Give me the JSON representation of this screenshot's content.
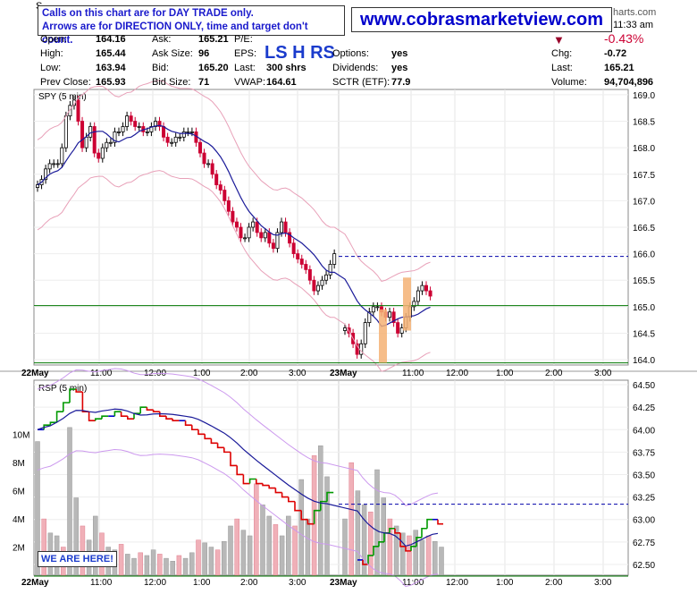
{
  "header": {
    "ticker_fragment": "S",
    "time": "11:33 am",
    "charts_suffix": "harts.com",
    "change_pct": "-0.43%",
    "stats_left": [
      {
        "label": "Open:",
        "value": "164.16"
      },
      {
        "label": "High:",
        "value": "165.44"
      },
      {
        "label": "Low:",
        "value": "163.94"
      },
      {
        "label": "Prev Close:",
        "value": "165.93"
      }
    ],
    "stats_mid": [
      {
        "label": "Ask:",
        "value": "165.21"
      },
      {
        "label": "Ask Size:",
        "value": "96"
      },
      {
        "label": "Bid:",
        "value": "165.20"
      },
      {
        "label": "Bid Size:",
        "value": "71"
      }
    ],
    "stats_mid2": [
      {
        "label": "P/E:",
        "value": ""
      },
      {
        "label": "EPS:",
        "value": ""
      },
      {
        "label": "Last:",
        "value": "300 shrs"
      },
      {
        "label": "VWAP:",
        "value": "164.61"
      }
    ],
    "stats_mid3": [
      {
        "label": "Options:",
        "value": "yes"
      },
      {
        "label": "Dividends:",
        "value": "yes"
      },
      {
        "label": "SCTR (ETF):",
        "value": "77.9"
      }
    ],
    "stats_right": [
      {
        "label": "Chg:",
        "value": "-0.72"
      },
      {
        "label": "Last:",
        "value": "165.21"
      },
      {
        "label": "Volume:",
        "value": "94,704,896"
      }
    ],
    "disclaimer_line1": "Calls on this chart are for DAY TRADE only.",
    "disclaimer_line2": "Arrows are for DIRECTION ONLY, time and target don't count.",
    "site": "www.cobrasmarketview.com",
    "ls_hrs": "LS H RS",
    "we_are_here": "WE ARE HERE!"
  },
  "colors": {
    "up": "#000000",
    "down": "#cc0033",
    "ma": "#1a1a99",
    "band": "#e8a0b8",
    "support": "#007700",
    "resistance": "#0000aa",
    "highlight": "#f5b274",
    "rsp_up": "#009900",
    "rsp_down": "#dd0000",
    "rsp_flat": "#0000cc",
    "vol_up": "#b8b8b8",
    "vol_down": "#f0b0b8"
  },
  "chart_data": [
    {
      "type": "candlestick",
      "title": "SPY (5 min)",
      "ylim": [
        163.9,
        169.1
      ],
      "yticks": [
        "169.0",
        "168.5",
        "168.0",
        "167.5",
        "167.0",
        "166.5",
        "166.0",
        "165.5",
        "165.0",
        "164.5",
        "164.0"
      ],
      "x_ticks": [
        "22May",
        "11:00",
        "12:00",
        "1:00",
        "2:00",
        "3:00",
        "23May",
        "11:00",
        "12:00",
        "1:00",
        "2:00",
        "3:00"
      ],
      "horizontal_lines": [
        {
          "kind": "resistance",
          "y": 165.95,
          "style": "dashed"
        },
        {
          "kind": "support",
          "y": 165.02,
          "style": "solid"
        },
        {
          "kind": "support",
          "y": 163.94,
          "style": "solid"
        }
      ],
      "close_series_day1": [
        167.3,
        167.4,
        167.6,
        167.7,
        167.7,
        167.7,
        168.0,
        168.6,
        168.8,
        168.9,
        168.5,
        168.0,
        168.2,
        168.4,
        167.9,
        167.8,
        168.0,
        168.1,
        168.1,
        168.3,
        168.3,
        168.4,
        168.6,
        168.5,
        168.4,
        168.4,
        168.3,
        168.3,
        168.4,
        168.5,
        168.4,
        168.2,
        168.1,
        168.1,
        168.2,
        168.2,
        168.3,
        168.3,
        168.3,
        168.1,
        167.9,
        167.7,
        167.7,
        167.5,
        167.3,
        167.2,
        167.0,
        166.8,
        166.6,
        166.5,
        166.3,
        166.3,
        166.5,
        166.6,
        166.4,
        166.3,
        166.4,
        166.2,
        166.1,
        166.4,
        166.6,
        166.4,
        166.2,
        166.0,
        165.9,
        165.8,
        165.7,
        165.5,
        165.3,
        165.4,
        165.5,
        165.6,
        165.8,
        166.0
      ],
      "close_series_day2": [
        164.6,
        164.5,
        164.3,
        164.1,
        164.3,
        164.7,
        164.9,
        165.0,
        165.0,
        164.9,
        164.8,
        164.9,
        164.7,
        164.5,
        164.6,
        164.8,
        165.0,
        165.1,
        165.3,
        165.4,
        165.3,
        165.2
      ]
    },
    {
      "type": "line",
      "title": "RSP (5 min)",
      "ylim": [
        62.38,
        64.55
      ],
      "yticks": [
        "64.50",
        "64.25",
        "64.00",
        "63.75",
        "63.50",
        "63.25",
        "63.00",
        "62.75",
        "62.50"
      ],
      "volume_ticks": [
        "10M",
        "8M",
        "6M",
        "4M",
        "2M"
      ],
      "x_ticks": [
        "22May",
        "11:00",
        "12:00",
        "1:00",
        "2:00",
        "3:00",
        "23May",
        "11:00",
        "12:00",
        "1:00",
        "2:00",
        "3:00"
      ],
      "horizontal_lines": [
        {
          "kind": "resistance",
          "y": 63.17,
          "style": "dashed"
        },
        {
          "kind": "support",
          "y": 62.37,
          "style": "solid"
        }
      ],
      "close_series_day1": [
        64.0,
        64.05,
        64.08,
        64.2,
        64.3,
        64.45,
        64.42,
        64.2,
        64.1,
        64.12,
        64.15,
        64.15,
        64.2,
        64.15,
        64.12,
        64.18,
        64.25,
        64.22,
        64.2,
        64.15,
        64.12,
        64.1,
        64.1,
        64.05,
        64.0,
        63.95,
        63.9,
        63.85,
        63.8,
        63.75,
        63.6,
        63.5,
        63.4,
        63.45,
        63.4,
        63.38,
        63.35,
        63.3,
        63.25,
        63.2,
        63.1,
        63.0,
        62.95,
        63.1,
        63.2,
        63.3
      ],
      "close_series_day2": [
        62.55,
        62.5,
        62.6,
        62.7,
        62.75,
        62.85,
        62.9,
        62.85,
        62.7,
        62.65,
        62.7,
        62.8,
        62.9,
        63.0,
        63.0,
        62.95
      ]
    }
  ]
}
